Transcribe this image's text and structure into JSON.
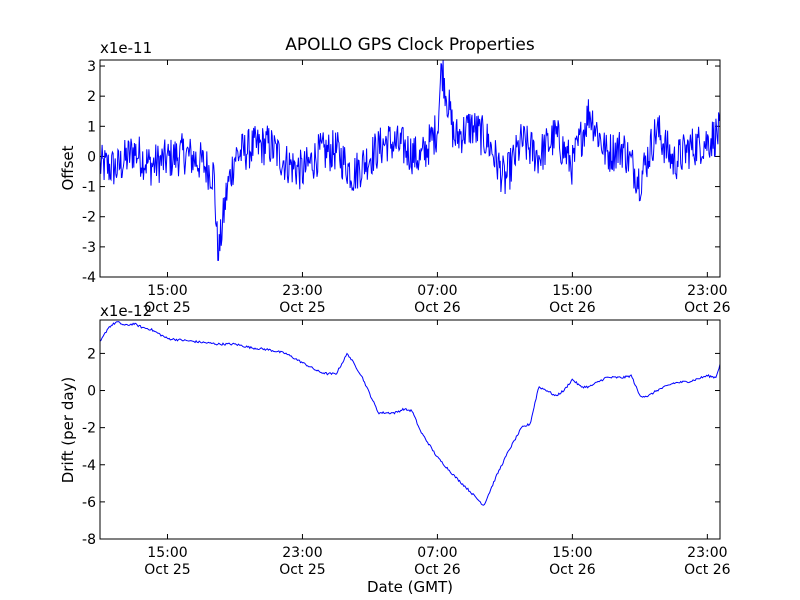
{
  "chart_data": [
    {
      "type": "line",
      "title": "APOLLO GPS Clock Properties",
      "ylabel": "Offset",
      "xlabel": "",
      "offset_text": "x1e-11",
      "ylim": [
        -4,
        3.2
      ],
      "yticks": [
        -4,
        -3,
        -2,
        -1,
        0,
        1,
        2,
        3
      ],
      "ytick_labels": [
        "-4",
        "-3",
        "-2",
        "-1",
        "0",
        "1",
        "2",
        "3"
      ],
      "xlim": [
        "Oct 25 11:00",
        "Oct 26 23:45"
      ],
      "xticks": [
        {
          "time": "15:00",
          "date": "Oct 25"
        },
        {
          "time": "23:00",
          "date": "Oct 25"
        },
        {
          "time": "07:00",
          "date": "Oct 26"
        },
        {
          "time": "15:00",
          "date": "Oct 26"
        },
        {
          "time": "23:00",
          "date": "Oct 26"
        }
      ],
      "color": "#0000ff",
      "series": [
        {
          "x": [
            "Oct 25 11:00",
            "Oct 25 12:00",
            "Oct 25 13:00",
            "Oct 25 14:00",
            "Oct 25 15:00",
            "Oct 25 16:00",
            "Oct 25 17:00",
            "Oct 25 17:45",
            "Oct 25 18:00",
            "Oct 25 18:30",
            "Oct 25 19:00",
            "Oct 25 20:00",
            "Oct 25 21:00",
            "Oct 25 22:00",
            "Oct 25 23:00",
            "Oct 26 00:00",
            "Oct 26 01:00",
            "Oct 26 02:00",
            "Oct 26 03:00",
            "Oct 26 04:00",
            "Oct 26 05:00",
            "Oct 26 06:00",
            "Oct 26 07:00",
            "Oct 26 07:15",
            "Oct 26 08:00",
            "Oct 26 09:00",
            "Oct 26 10:00",
            "Oct 26 11:00",
            "Oct 26 12:00",
            "Oct 26 13:00",
            "Oct 26 14:00",
            "Oct 26 15:00",
            "Oct 26 16:00",
            "Oct 26 17:00",
            "Oct 26 18:00",
            "Oct 26 19:00",
            "Oct 26 20:00",
            "Oct 26 21:00",
            "Oct 26 22:00",
            "Oct 26 23:00",
            "Oct 26 23:45"
          ],
          "y": [
            -0.3,
            -0.4,
            0.2,
            -0.3,
            -0.1,
            0.1,
            -0.2,
            -0.6,
            -3.4,
            -1.2,
            0.0,
            0.3,
            0.4,
            -0.2,
            -0.5,
            0.1,
            0.2,
            -0.6,
            0.0,
            0.5,
            0.3,
            -0.1,
            0.9,
            3.0,
            0.6,
            1.0,
            0.5,
            -0.8,
            0.5,
            0.0,
            0.7,
            -0.3,
            1.5,
            0.1,
            0.3,
            -0.8,
            0.9,
            -0.2,
            0.3,
            0.5,
            0.8
          ],
          "min": -3.45,
          "max": 3.2
        }
      ]
    },
    {
      "type": "line",
      "title": "",
      "ylabel": "Drift (per day)",
      "xlabel": "Date (GMT)",
      "offset_text": "x1e-12",
      "ylim": [
        -8,
        3.8
      ],
      "yticks": [
        -8,
        -6,
        -4,
        -2,
        0,
        2
      ],
      "ytick_labels": [
        "-8",
        "-6",
        "-4",
        "-2",
        "0",
        "2"
      ],
      "xlim": [
        "Oct 25 11:00",
        "Oct 26 23:45"
      ],
      "xticks": [
        {
          "time": "15:00",
          "date": "Oct 25"
        },
        {
          "time": "23:00",
          "date": "Oct 25"
        },
        {
          "time": "07:00",
          "date": "Oct 26"
        },
        {
          "time": "15:00",
          "date": "Oct 26"
        },
        {
          "time": "23:00",
          "date": "Oct 26"
        }
      ],
      "color": "#0000ff",
      "series": [
        {
          "x": [
            "Oct 25 11:00",
            "Oct 25 11:30",
            "Oct 25 12:00",
            "Oct 25 12:30",
            "Oct 25 13:00",
            "Oct 25 13:30",
            "Oct 25 14:00",
            "Oct 25 15:00",
            "Oct 25 16:00",
            "Oct 25 17:00",
            "Oct 25 18:00",
            "Oct 25 19:00",
            "Oct 25 20:00",
            "Oct 25 21:00",
            "Oct 25 22:00",
            "Oct 25 23:00",
            "Oct 26 00:00",
            "Oct 26 00:30",
            "Oct 26 01:00",
            "Oct 26 01:40",
            "Oct 26 02:30",
            "Oct 26 03:30",
            "Oct 26 04:30",
            "Oct 26 05:00",
            "Oct 26 05:30",
            "Oct 26 06:00",
            "Oct 26 07:00",
            "Oct 26 08:00",
            "Oct 26 09:00",
            "Oct 26 09:45",
            "Oct 26 10:30",
            "Oct 26 11:15",
            "Oct 26 12:00",
            "Oct 26 12:30",
            "Oct 26 13:00",
            "Oct 26 13:30",
            "Oct 26 14:00",
            "Oct 26 14:30",
            "Oct 26 15:00",
            "Oct 26 15:30",
            "Oct 26 16:00",
            "Oct 26 17:00",
            "Oct 26 18:00",
            "Oct 26 18:30",
            "Oct 26 19:00",
            "Oct 26 19:30",
            "Oct 26 20:00",
            "Oct 26 21:00",
            "Oct 26 22:00",
            "Oct 26 23:00",
            "Oct 26 23:30",
            "Oct 26 23:45"
          ],
          "y": [
            2.6,
            3.4,
            3.7,
            3.5,
            3.6,
            3.4,
            3.3,
            2.8,
            2.7,
            2.6,
            2.5,
            2.5,
            2.3,
            2.2,
            2.0,
            1.5,
            1.0,
            0.9,
            0.9,
            2.0,
            0.8,
            -1.2,
            -1.2,
            -1.0,
            -1.1,
            -2.2,
            -3.6,
            -4.6,
            -5.5,
            -6.2,
            -4.6,
            -3.2,
            -2.0,
            -1.8,
            0.2,
            0.0,
            -0.3,
            0.0,
            0.6,
            0.2,
            0.2,
            0.7,
            0.7,
            0.8,
            -0.3,
            -0.3,
            0.0,
            0.4,
            0.5,
            0.8,
            0.7,
            1.4
          ]
        }
      ]
    }
  ]
}
